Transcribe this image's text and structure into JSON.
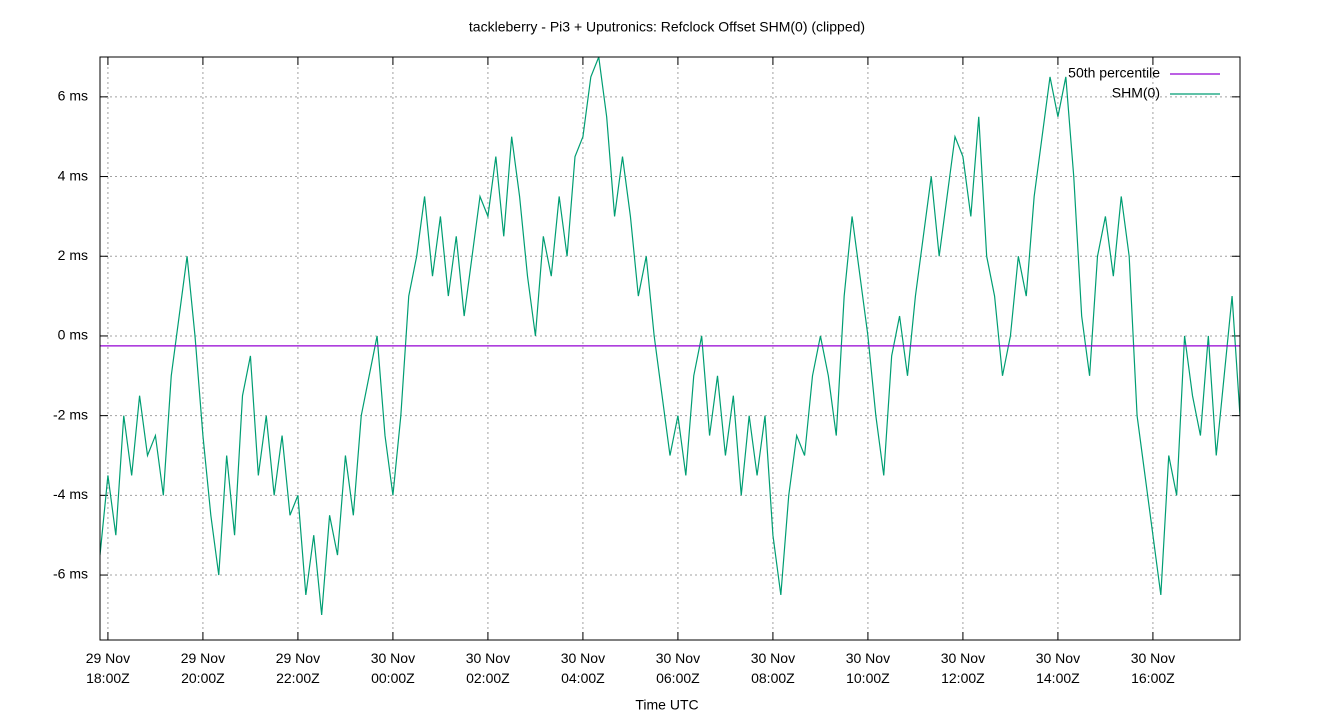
{
  "chart_data": {
    "type": "line",
    "title": "tackleberry - Pi3 + Uputronics: Refclock Offset SHM(0) (clipped)",
    "xlabel": "Time UTC",
    "xlim": [
      "29 Nov 17:50Z",
      "30 Nov 17:50Z"
    ],
    "xticks": [
      {
        "value": "29 Nov 18:00Z",
        "label": "29 Nov\n18:00Z"
      },
      {
        "value": "29 Nov 20:00Z",
        "label": "29 Nov\n20:00Z"
      },
      {
        "value": "29 Nov 22:00Z",
        "label": "29 Nov\n22:00Z"
      },
      {
        "value": "30 Nov 00:00Z",
        "label": "30 Nov\n00:00Z"
      },
      {
        "value": "30 Nov 02:00Z",
        "label": "30 Nov\n02:00Z"
      },
      {
        "value": "30 Nov 04:00Z",
        "label": "30 Nov\n04:00Z"
      },
      {
        "value": "30 Nov 06:00Z",
        "label": "30 Nov\n06:00Z"
      },
      {
        "value": "30 Nov 08:00Z",
        "label": "30 Nov\n08:00Z"
      },
      {
        "value": "30 Nov 10:00Z",
        "label": "30 Nov\n10:00Z"
      },
      {
        "value": "30 Nov 12:00Z",
        "label": "30 Nov\n12:00Z"
      },
      {
        "value": "30 Nov 14:00Z",
        "label": "30 Nov\n14:00Z"
      },
      {
        "value": "30 Nov 16:00Z",
        "label": "30 Nov\n16:00Z"
      }
    ],
    "ylim": [
      -7.63,
      7.0
    ],
    "yticks": [
      {
        "value": -6,
        "label": "-6 ms"
      },
      {
        "value": -4,
        "label": "-4 ms"
      },
      {
        "value": -2,
        "label": "-2 ms"
      },
      {
        "value": 0,
        "label": "0 ms"
      },
      {
        "value": 2,
        "label": "2 ms"
      },
      {
        "value": 4,
        "label": "4 ms"
      },
      {
        "value": 6,
        "label": "6 ms"
      }
    ],
    "grid": true,
    "legend": "top-right",
    "series": [
      {
        "name": "50th percentile",
        "color": "#9400d3",
        "x": [
          "29 Nov 17:50Z",
          "30 Nov 17:50Z"
        ],
        "values": [
          -0.25,
          -0.25
        ]
      },
      {
        "name": "SHM(0)",
        "color": "#009e73",
        "x": [
          "29 Nov 17:50Z",
          "29 Nov 18:00Z",
          "29 Nov 18:10Z",
          "29 Nov 18:20Z",
          "29 Nov 18:30Z",
          "29 Nov 18:40Z",
          "29 Nov 18:50Z",
          "29 Nov 19:00Z",
          "29 Nov 19:10Z",
          "29 Nov 19:20Z",
          "29 Nov 19:30Z",
          "29 Nov 19:40Z",
          "29 Nov 19:50Z",
          "29 Nov 20:00Z",
          "29 Nov 20:10Z",
          "29 Nov 20:20Z",
          "29 Nov 20:30Z",
          "29 Nov 20:40Z",
          "29 Nov 20:50Z",
          "29 Nov 21:00Z",
          "29 Nov 21:10Z",
          "29 Nov 21:20Z",
          "29 Nov 21:30Z",
          "29 Nov 21:40Z",
          "29 Nov 21:50Z",
          "29 Nov 22:00Z",
          "29 Nov 22:10Z",
          "29 Nov 22:20Z",
          "29 Nov 22:30Z",
          "29 Nov 22:40Z",
          "29 Nov 22:50Z",
          "29 Nov 23:00Z",
          "29 Nov 23:10Z",
          "29 Nov 23:20Z",
          "29 Nov 23:30Z",
          "29 Nov 23:40Z",
          "29 Nov 23:50Z",
          "30 Nov 00:00Z",
          "30 Nov 00:10Z",
          "30 Nov 00:20Z",
          "30 Nov 00:30Z",
          "30 Nov 00:40Z",
          "30 Nov 00:50Z",
          "30 Nov 01:00Z",
          "30 Nov 01:10Z",
          "30 Nov 01:20Z",
          "30 Nov 01:30Z",
          "30 Nov 01:40Z",
          "30 Nov 01:50Z",
          "30 Nov 02:00Z",
          "30 Nov 02:10Z",
          "30 Nov 02:20Z",
          "30 Nov 02:30Z",
          "30 Nov 02:40Z",
          "30 Nov 02:50Z",
          "30 Nov 03:00Z",
          "30 Nov 03:10Z",
          "30 Nov 03:20Z",
          "30 Nov 03:30Z",
          "30 Nov 03:40Z",
          "30 Nov 03:50Z",
          "30 Nov 04:00Z",
          "30 Nov 04:10Z",
          "30 Nov 04:20Z",
          "30 Nov 04:30Z",
          "30 Nov 04:40Z",
          "30 Nov 04:50Z",
          "30 Nov 05:00Z",
          "30 Nov 05:10Z",
          "30 Nov 05:20Z",
          "30 Nov 05:30Z",
          "30 Nov 05:40Z",
          "30 Nov 05:50Z",
          "30 Nov 06:00Z",
          "30 Nov 06:10Z",
          "30 Nov 06:20Z",
          "30 Nov 06:30Z",
          "30 Nov 06:40Z",
          "30 Nov 06:50Z",
          "30 Nov 07:00Z",
          "30 Nov 07:10Z",
          "30 Nov 07:20Z",
          "30 Nov 07:30Z",
          "30 Nov 07:40Z",
          "30 Nov 07:50Z",
          "30 Nov 08:00Z",
          "30 Nov 08:10Z",
          "30 Nov 08:20Z",
          "30 Nov 08:30Z",
          "30 Nov 08:40Z",
          "30 Nov 08:50Z",
          "30 Nov 09:00Z",
          "30 Nov 09:10Z",
          "30 Nov 09:20Z",
          "30 Nov 09:30Z",
          "30 Nov 09:40Z",
          "30 Nov 09:50Z",
          "30 Nov 10:00Z",
          "30 Nov 10:10Z",
          "30 Nov 10:20Z",
          "30 Nov 10:30Z",
          "30 Nov 10:40Z",
          "30 Nov 10:50Z",
          "30 Nov 11:00Z",
          "30 Nov 11:10Z",
          "30 Nov 11:20Z",
          "30 Nov 11:30Z",
          "30 Nov 11:40Z",
          "30 Nov 11:50Z",
          "30 Nov 12:00Z",
          "30 Nov 12:10Z",
          "30 Nov 12:20Z",
          "30 Nov 12:30Z",
          "30 Nov 12:40Z",
          "30 Nov 12:50Z",
          "30 Nov 13:00Z",
          "30 Nov 13:10Z",
          "30 Nov 13:20Z",
          "30 Nov 13:30Z",
          "30 Nov 13:40Z",
          "30 Nov 13:50Z",
          "30 Nov 14:00Z",
          "30 Nov 14:10Z",
          "30 Nov 14:20Z",
          "30 Nov 14:30Z",
          "30 Nov 14:40Z",
          "30 Nov 14:50Z",
          "30 Nov 15:00Z",
          "30 Nov 15:10Z",
          "30 Nov 15:20Z",
          "30 Nov 15:30Z",
          "30 Nov 15:40Z",
          "30 Nov 15:50Z",
          "30 Nov 16:00Z",
          "30 Nov 16:10Z",
          "30 Nov 16:20Z",
          "30 Nov 16:30Z",
          "30 Nov 16:40Z",
          "30 Nov 16:50Z",
          "30 Nov 17:00Z",
          "30 Nov 17:10Z",
          "30 Nov 17:20Z",
          "30 Nov 17:30Z",
          "30 Nov 17:40Z",
          "30 Nov 17:50Z"
        ],
        "values": [
          -5.5,
          -3.5,
          -5,
          -2,
          -3.5,
          -1.5,
          -3,
          -2.5,
          -4,
          -1,
          0.5,
          2,
          0,
          -2.5,
          -4.5,
          -6,
          -3,
          -5,
          -1.5,
          -0.5,
          -3.5,
          -2,
          -4,
          -2.5,
          -4.5,
          -4,
          -6.5,
          -5,
          -7,
          -4.5,
          -5.5,
          -3,
          -4.5,
          -2,
          -1,
          0,
          -2.5,
          -4,
          -2,
          1,
          2,
          3.5,
          1.5,
          3,
          1,
          2.5,
          0.5,
          2,
          3.5,
          3,
          4.5,
          2.5,
          5,
          3.5,
          1.5,
          0,
          2.5,
          1.5,
          3.5,
          2,
          4.5,
          5,
          6.5,
          7,
          5.5,
          3,
          4.5,
          3,
          1,
          2,
          0,
          -1.5,
          -3,
          -2,
          -3.5,
          -1,
          0,
          -2.5,
          -1,
          -3,
          -1.5,
          -4,
          -2,
          -3.5,
          -2,
          -5,
          -6.5,
          -4,
          -2.5,
          -3,
          -1,
          0,
          -1,
          -2.5,
          1,
          3,
          1.5,
          0,
          -2,
          -3.5,
          -0.5,
          0.5,
          -1,
          1,
          2.5,
          4,
          2,
          3.5,
          5,
          4.5,
          3,
          5.5,
          2,
          1,
          -1,
          0,
          2,
          1,
          3.5,
          5,
          6.5,
          5.5,
          6.5,
          4,
          0.5,
          -1,
          2,
          3,
          1.5,
          3.5,
          2,
          -2,
          -3.5,
          -5,
          -6.5,
          -3,
          -4,
          0,
          -1.5,
          -2.5,
          0,
          -3,
          -1,
          1,
          -2
        ]
      }
    ]
  }
}
